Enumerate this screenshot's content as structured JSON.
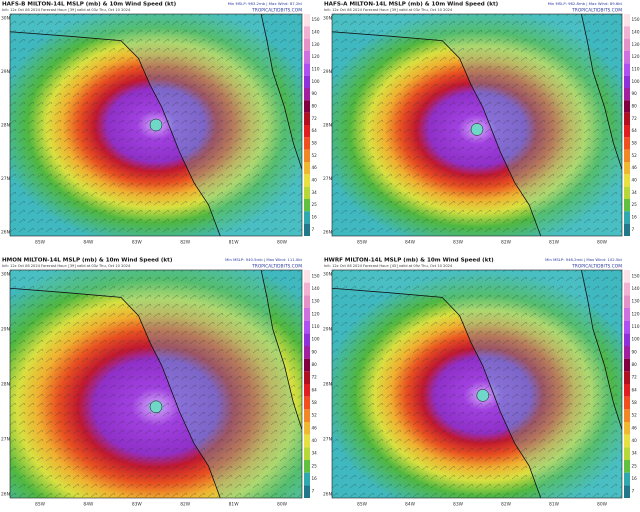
{
  "panels": [
    {
      "title": "HAFS-B MILTON-14L MSLP (mb) & 10m Wind Speed (kt)",
      "stats": "Min MSLP: 963.2mb | Max Wind: 87.2kt",
      "init": "Init: 12z Oct 08 2024   Forecast Hour: [39]   valid at 03z Thu, Oct 10 2024",
      "site": "TROPICALTIDBITS.COM",
      "lat_labels": [
        "30N",
        "29N",
        "28N",
        "27N",
        "26N"
      ],
      "lon_labels": [
        "85W",
        "84W",
        "83W",
        "82W",
        "81W",
        "80W"
      ],
      "colorbar_labels": [
        "150",
        "140",
        "130",
        "120",
        "110",
        "100",
        "90",
        "80",
        "72",
        "64",
        "58",
        "52",
        "46",
        "40",
        "34",
        "25",
        "16",
        "7"
      ]
    },
    {
      "title": "HAFS-A MILTON-14L MSLP (mb) & 10m Wind Speed (kt)",
      "stats": "Min MSLP: 962.8mb | Max Wind: 89.6kt",
      "init": "Init: 12z Oct 08 2024   Forecast Hour: [39]   valid at 03z Thu, Oct 10 2024",
      "site": "TROPICALTIDBITS.COM",
      "lat_labels": [
        "30N",
        "29N",
        "28N",
        "27N",
        "26N"
      ],
      "lon_labels": [
        "85W",
        "84W",
        "83W",
        "82W",
        "81W",
        "80W"
      ],
      "colorbar_labels": [
        "150",
        "140",
        "130",
        "120",
        "110",
        "100",
        "90",
        "80",
        "72",
        "64",
        "58",
        "52",
        "46",
        "40",
        "34",
        "25",
        "16",
        "7"
      ]
    },
    {
      "title": "HMON MILTON-14L MSLP (mb) & 10m Wind Speed (kt)",
      "stats": "Min MSLP: 940.5mb | Max Wind: 111.0kt",
      "init": "Init: 12z Oct 08 2024   Forecast Hour: [39]   valid at 03z Thu, Oct 10 2024",
      "site": "TROPICALTIDBITS.COM",
      "lat_labels": [
        "30N",
        "29N",
        "28N",
        "27N",
        "26N"
      ],
      "lon_labels": [
        "85W",
        "84W",
        "83W",
        "82W",
        "81W",
        "80W"
      ],
      "colorbar_labels": [
        "150",
        "140",
        "130",
        "120",
        "110",
        "100",
        "90",
        "80",
        "72",
        "64",
        "58",
        "52",
        "46",
        "40",
        "34",
        "25",
        "16",
        "7"
      ]
    },
    {
      "title": "HWRF MILTON-14L MSLP (mb) & 10m Wind Speed (kt)",
      "stats": "Min MSLP: 946.2mb | Max Wind: 102.5kt",
      "init": "Init: 12z Oct 08 2024   Forecast Hour: [45]   valid at 09z Thu, Oct 10 2024",
      "site": "TROPICALTIDBITS.COM",
      "lat_labels": [
        "30N",
        "29N",
        "28N",
        "27N",
        "26N"
      ],
      "lon_labels": [
        "85W",
        "84W",
        "83W",
        "82W",
        "81W",
        "80W"
      ],
      "colorbar_labels": [
        "150",
        "140",
        "130",
        "120",
        "110",
        "100",
        "90",
        "80",
        "72",
        "64",
        "58",
        "52",
        "46",
        "40",
        "34",
        "25",
        "16",
        "7"
      ]
    }
  ]
}
